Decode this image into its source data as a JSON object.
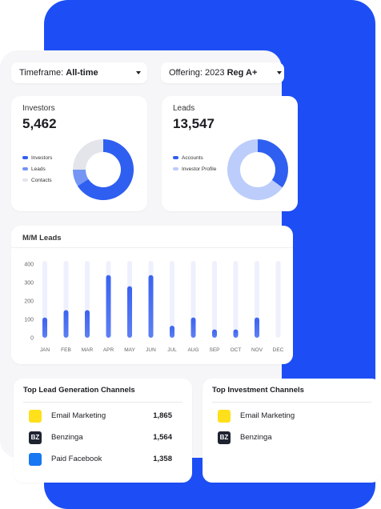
{
  "filters": [
    {
      "label": "Timeframe:",
      "value": "All-time"
    },
    {
      "label": "Offering: 2023",
      "value": "Reg A+"
    }
  ],
  "chart_data": [
    {
      "type": "pie",
      "title": "Investors",
      "total": "5,462",
      "categories": [
        "Investors",
        "Leads",
        "Contacts"
      ],
      "values": [
        66,
        9,
        25
      ],
      "colors": [
        "#2f5ff0",
        "#7495f4",
        "#e3e5ea"
      ]
    },
    {
      "type": "pie",
      "title": "Leads",
      "total": "13,547",
      "categories": [
        "Accounts",
        "Investor Profile"
      ],
      "values": [
        35,
        65
      ],
      "colors": [
        "#2f5ff0",
        "#bccdfb"
      ]
    },
    {
      "type": "bar",
      "title": "M/M Leads",
      "categories": [
        "JAN",
        "FEB",
        "MAR",
        "APR",
        "MAY",
        "JUN",
        "JUL",
        "AUG",
        "SEP",
        "OCT",
        "NOV",
        "DEC"
      ],
      "values": [
        110,
        150,
        150,
        340,
        280,
        340,
        65,
        110,
        45,
        45,
        110,
        null
      ],
      "color": "#3a63f0",
      "ylim": [
        0,
        400
      ],
      "yticks": [
        0,
        100,
        200,
        300,
        400
      ],
      "grid": false
    }
  ],
  "channels": [
    {
      "title": "Top Lead Generation Channels",
      "rows": [
        {
          "name": "Email Marketing",
          "value": "1,865"
        },
        {
          "name": "Benzinga",
          "value": "1,564",
          "logo": "BZ"
        },
        {
          "name": "Paid Facebook",
          "value": "1,358"
        }
      ]
    },
    {
      "title": "Top Investment Channels",
      "rows": [
        {
          "name": "Email Marketing"
        },
        {
          "name": "Benzinga",
          "logo": "BZ"
        }
      ]
    }
  ]
}
